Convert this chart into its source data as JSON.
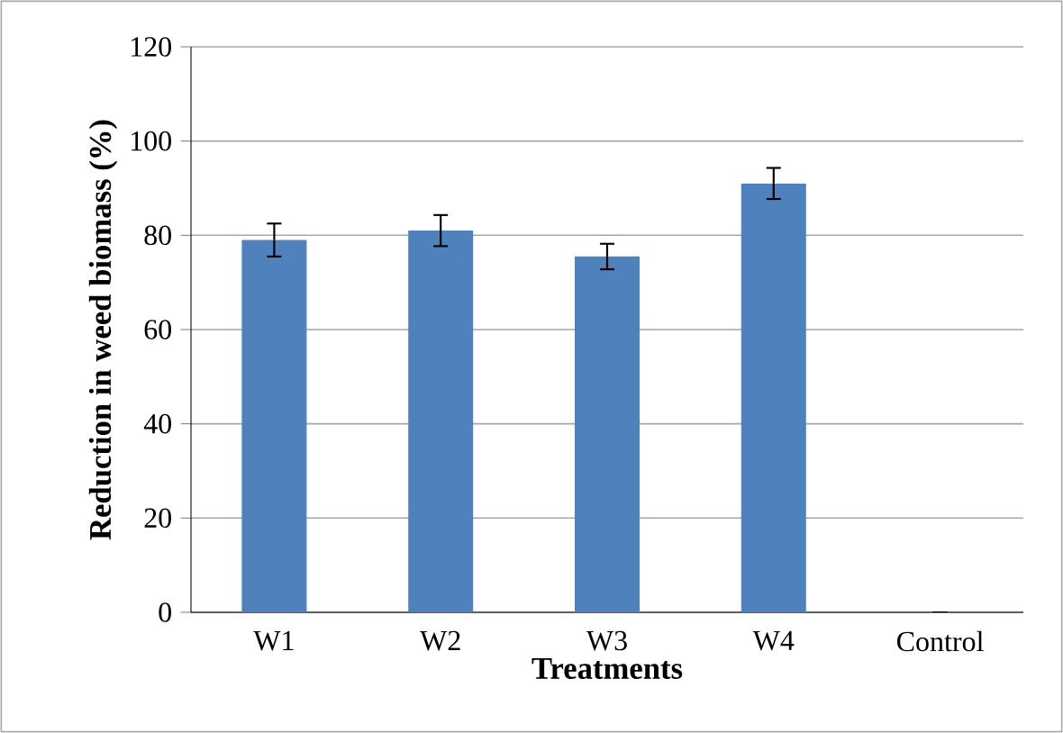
{
  "chart_data": {
    "type": "bar",
    "xlabel": "Treatments",
    "ylabel": "Reduction in weed biomass (%)",
    "categories": [
      "W1",
      "W2",
      "W3",
      "W4",
      "Control"
    ],
    "values": [
      79,
      81,
      75.5,
      91,
      0
    ],
    "errors": [
      3.5,
      3.3,
      2.7,
      3.3,
      null
    ],
    "color": "#4f81bd",
    "ylim": [
      0,
      120
    ],
    "yticks": [
      0,
      20,
      40,
      60,
      80,
      100,
      120
    ],
    "grid": "y"
  }
}
